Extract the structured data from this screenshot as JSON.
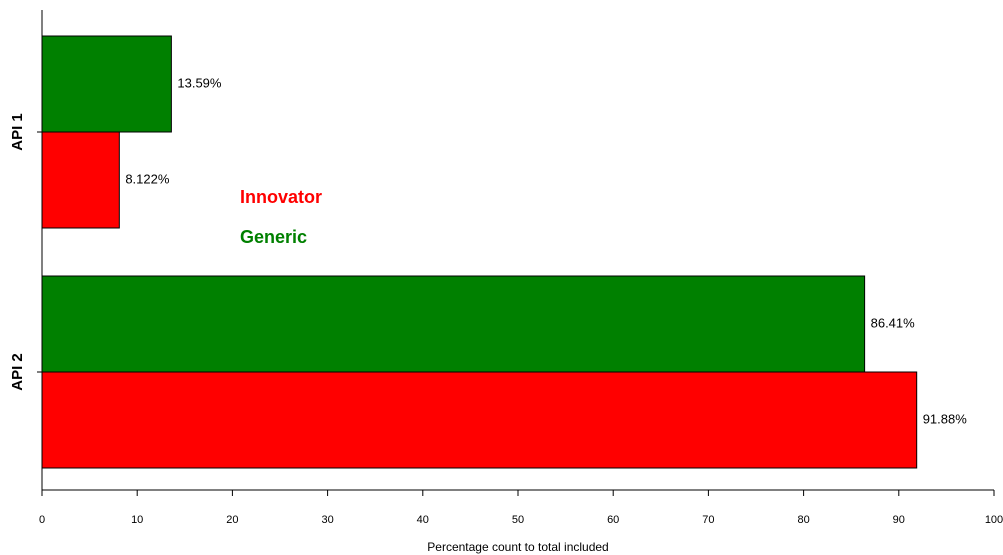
{
  "chart_data": {
    "type": "hbar",
    "categories": [
      "API 1",
      "API 2"
    ],
    "series": [
      {
        "name": "Innovator",
        "color": "#ff0000",
        "values": [
          8.122,
          91.88
        ],
        "value_labels": [
          "8.122%",
          "91.88%"
        ]
      },
      {
        "name": "Generic",
        "color": "#008000",
        "values": [
          13.59,
          86.41
        ],
        "value_labels": [
          "13.59%",
          "86.41%"
        ]
      }
    ],
    "xlabel": "Percentage count to total included",
    "xlim": [
      0,
      100
    ],
    "xticks": [
      0,
      10,
      20,
      30,
      40,
      50,
      60,
      70,
      80,
      90,
      100
    ]
  }
}
